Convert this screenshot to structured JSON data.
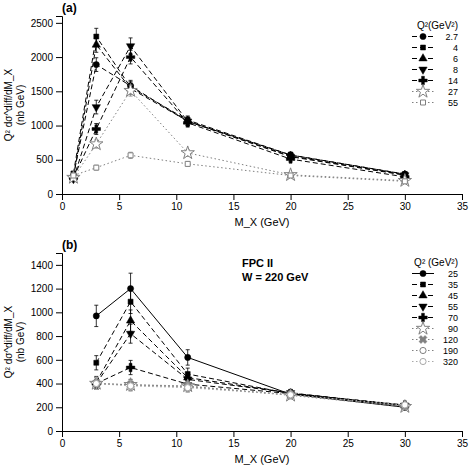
{
  "chart_data": [
    {
      "type": "line",
      "title": "(a)",
      "xlabel": "M_X (GeV)",
      "ylabel": [
        "Q² dσ^diff/dM_X",
        "(nb GeV)"
      ],
      "legend_title": "Q²(GeV²)",
      "legend": "upper-right",
      "xlim": [
        0,
        35
      ],
      "ylim": [
        0,
        2600
      ],
      "xticks": [
        0,
        5,
        10,
        15,
        20,
        25,
        30,
        35
      ],
      "yticks": [
        0,
        500,
        1000,
        1500,
        2000,
        2500
      ],
      "x": [
        1.0,
        3.0,
        6.0,
        11.0,
        20.0,
        30.0
      ],
      "series": [
        {
          "name": "2.7",
          "color": "black",
          "marker": "circle",
          "line_style": "dashed",
          "values": [
            270,
            1890,
            1580,
            1060,
            570,
            290
          ],
          "errors": [
            30,
            100,
            80,
            60,
            40,
            20
          ]
        },
        {
          "name": "4",
          "color": "black",
          "marker": "square",
          "line_style": "dashed",
          "values": [
            300,
            2300,
            1560,
            1080,
            570,
            290
          ],
          "errors": [
            30,
            120,
            80,
            60,
            40,
            20
          ]
        },
        {
          "name": "6",
          "color": "black",
          "marker": "triangle-up",
          "line_style": "dashed",
          "values": [
            240,
            2180,
            1540,
            1065,
            555,
            280
          ],
          "errors": [
            30,
            110,
            80,
            60,
            40,
            20
          ]
        },
        {
          "name": "8",
          "color": "black",
          "marker": "triangle-down",
          "line_style": "dashed",
          "values": [
            220,
            1270,
            2160,
            1060,
            545,
            275
          ],
          "errors": [
            30,
            100,
            120,
            60,
            40,
            20
          ]
        },
        {
          "name": "14",
          "color": "black",
          "marker": "plus",
          "line_style": "dashed",
          "values": [
            240,
            950,
            2000,
            1040,
            510,
            250
          ],
          "errors": [
            30,
            80,
            100,
            60,
            40,
            20
          ]
        },
        {
          "name": "27",
          "color": "gray",
          "marker": "star-open",
          "line_style": "dotted",
          "values": [
            240,
            730,
            1510,
            600,
            280,
            195
          ],
          "errors": [
            30,
            60,
            80,
            50,
            30,
            20
          ]
        },
        {
          "name": "55",
          "color": "gray",
          "marker": "square-open",
          "line_style": "dotted",
          "values": [
            270,
            385,
            565,
            440,
            270,
            185
          ],
          "errors": [
            30,
            35,
            45,
            35,
            25,
            18
          ]
        }
      ]
    },
    {
      "type": "line",
      "title": "(b)",
      "xlabel": "M_X (GeV)",
      "ylabel": [
        "Q² dσ^diff/dM_X",
        "(nb GeV)"
      ],
      "legend_title": "Q² (GeV²)",
      "legend": "upper-right",
      "annotations": [
        "FPC II",
        "W = 220 GeV"
      ],
      "xlim": [
        0,
        35
      ],
      "ylim": [
        0,
        1500
      ],
      "xticks": [
        0,
        5,
        10,
        15,
        20,
        25,
        30,
        35
      ],
      "yticks": [
        0,
        200,
        400,
        600,
        800,
        1000,
        1200,
        1400
      ],
      "x": [
        3.0,
        6.0,
        11.0,
        20.0,
        30.0
      ],
      "series": [
        {
          "name": "25",
          "color": "black",
          "marker": "circle",
          "line_style": "solid",
          "values": [
            970,
            1200,
            620,
            310,
            200
          ],
          "errors": [
            90,
            130,
            65,
            30,
            20
          ]
        },
        {
          "name": "35",
          "color": "black",
          "marker": "square",
          "line_style": "dashed",
          "values": [
            575,
            1090,
            480,
            315,
            210
          ],
          "errors": [
            60,
            100,
            50,
            30,
            20
          ]
        },
        {
          "name": "45",
          "color": "black",
          "marker": "triangle-up",
          "line_style": "dashed",
          "values": [
            410,
            930,
            450,
            320,
            215
          ],
          "errors": [
            50,
            90,
            45,
            30,
            20
          ]
        },
        {
          "name": "55",
          "color": "black",
          "marker": "triangle-down",
          "line_style": "dashed",
          "values": [
            400,
            820,
            435,
            320,
            215
          ],
          "errors": [
            50,
            80,
            45,
            30,
            20
          ]
        },
        {
          "name": "70",
          "color": "black",
          "marker": "plus",
          "line_style": "dashed",
          "values": [
            400,
            535,
            395,
            315,
            220
          ],
          "errors": [
            50,
            60,
            40,
            30,
            20
          ]
        },
        {
          "name": "90",
          "color": "gray",
          "marker": "star-open",
          "line_style": "dotted",
          "values": [
            400,
            390,
            380,
            300,
            205
          ],
          "errors": [
            50,
            45,
            40,
            30,
            20
          ]
        },
        {
          "name": "120",
          "color": "gray",
          "marker": "x",
          "line_style": "dotted",
          "values": [
            400,
            390,
            375,
            305,
            210
          ],
          "errors": [
            50,
            45,
            40,
            30,
            20
          ]
        },
        {
          "name": "190",
          "color": "gray",
          "marker": "circle-open",
          "line_style": "dotted",
          "values": [
            400,
            385,
            370,
            305,
            215
          ],
          "errors": [
            50,
            45,
            40,
            30,
            20
          ]
        },
        {
          "name": "320",
          "color": "darkgray",
          "marker": "circle-open",
          "line_style": "dotted",
          "values": [
            400,
            380,
            365,
            305,
            220
          ],
          "errors": [
            50,
            45,
            40,
            30,
            20
          ]
        }
      ]
    }
  ]
}
